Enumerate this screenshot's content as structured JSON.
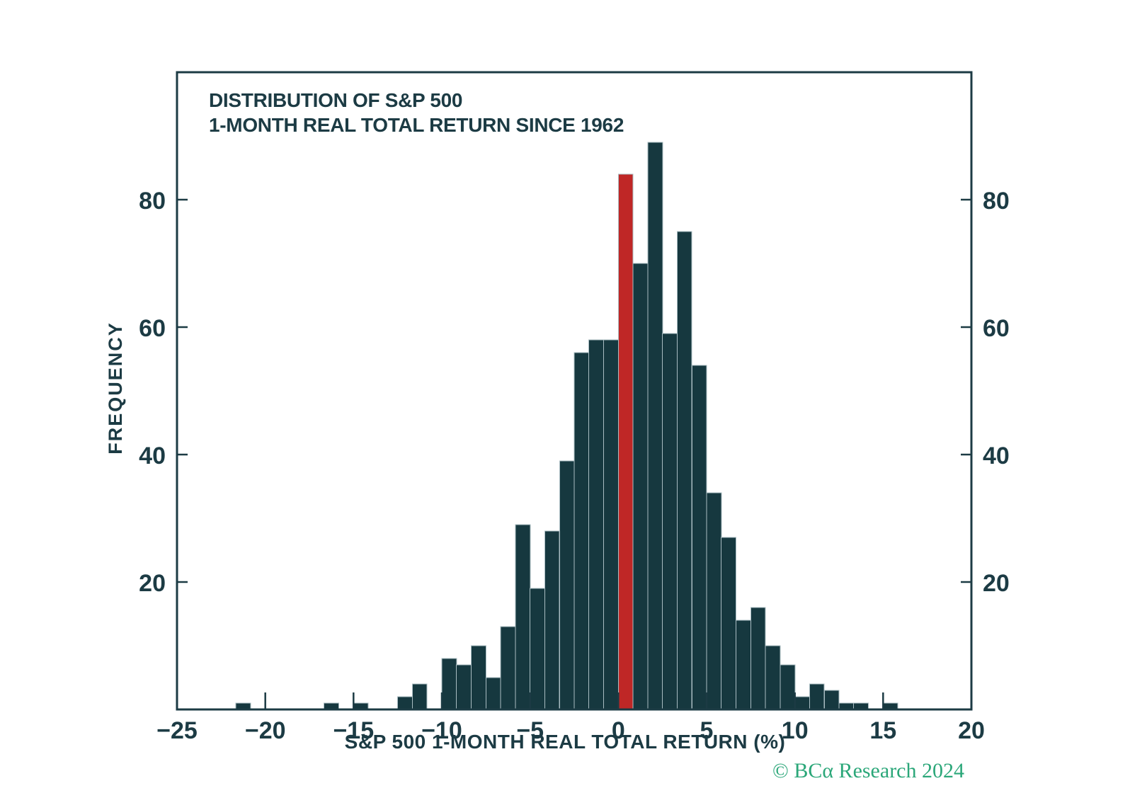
{
  "colors": {
    "bar": "#16383F",
    "bar_edge": "#A9BCC2",
    "highlight": "#BF2726",
    "axis": "#1C3B44",
    "text": "#1C3B44",
    "copyright": "#2BA779",
    "background": "#FFFFFF"
  },
  "footer": {
    "copyright": "© BCα Research 2024"
  },
  "chart_data": {
    "type": "bar",
    "title_line1": "DISTRIBUTION OF S&P 500",
    "title_line2": "1-MONTH REAL TOTAL RETURN SINCE 1962",
    "xlabel": "S&P 500 1-MONTH REAL TOTAL RETURN (%)",
    "ylabel": "FREQUENCY",
    "copyright": "© BCα Research 2024",
    "xlim": [
      -25,
      20
    ],
    "ylim": [
      0,
      100
    ],
    "x_ticks": [
      -25,
      -20,
      -15,
      -10,
      -5,
      0,
      5,
      10,
      15,
      20
    ],
    "y_ticks": [
      20,
      40,
      60,
      80
    ],
    "y_ticks_on_both_sides": true,
    "grid": false,
    "legend": "none",
    "bin_width": 0.8333,
    "highlight_bin_left": 0,
    "highlight_meaning": "most recent 1-month return bin (red)",
    "bins": [
      [
        -21.67,
        1
      ],
      [
        -16.67,
        1
      ],
      [
        -15.0,
        1
      ],
      [
        -12.5,
        2
      ],
      [
        -11.67,
        4
      ],
      [
        -10.0,
        8
      ],
      [
        -9.17,
        7
      ],
      [
        -8.33,
        10
      ],
      [
        -7.5,
        5
      ],
      [
        -6.67,
        13
      ],
      [
        -5.83,
        29
      ],
      [
        -5.0,
        19
      ],
      [
        -4.17,
        28
      ],
      [
        -3.33,
        39
      ],
      [
        -2.5,
        56
      ],
      [
        -1.67,
        58
      ],
      [
        -0.83,
        58
      ],
      [
        0.0,
        84
      ],
      [
        0.83,
        70
      ],
      [
        1.67,
        89
      ],
      [
        2.5,
        59
      ],
      [
        3.33,
        75
      ],
      [
        4.17,
        54
      ],
      [
        5.0,
        34
      ],
      [
        5.83,
        27
      ],
      [
        6.67,
        14
      ],
      [
        7.5,
        16
      ],
      [
        8.33,
        10
      ],
      [
        9.17,
        7
      ],
      [
        10.0,
        2
      ],
      [
        10.83,
        4
      ],
      [
        11.67,
        3
      ],
      [
        12.5,
        1
      ],
      [
        13.33,
        1
      ],
      [
        15.0,
        1
      ]
    ]
  }
}
